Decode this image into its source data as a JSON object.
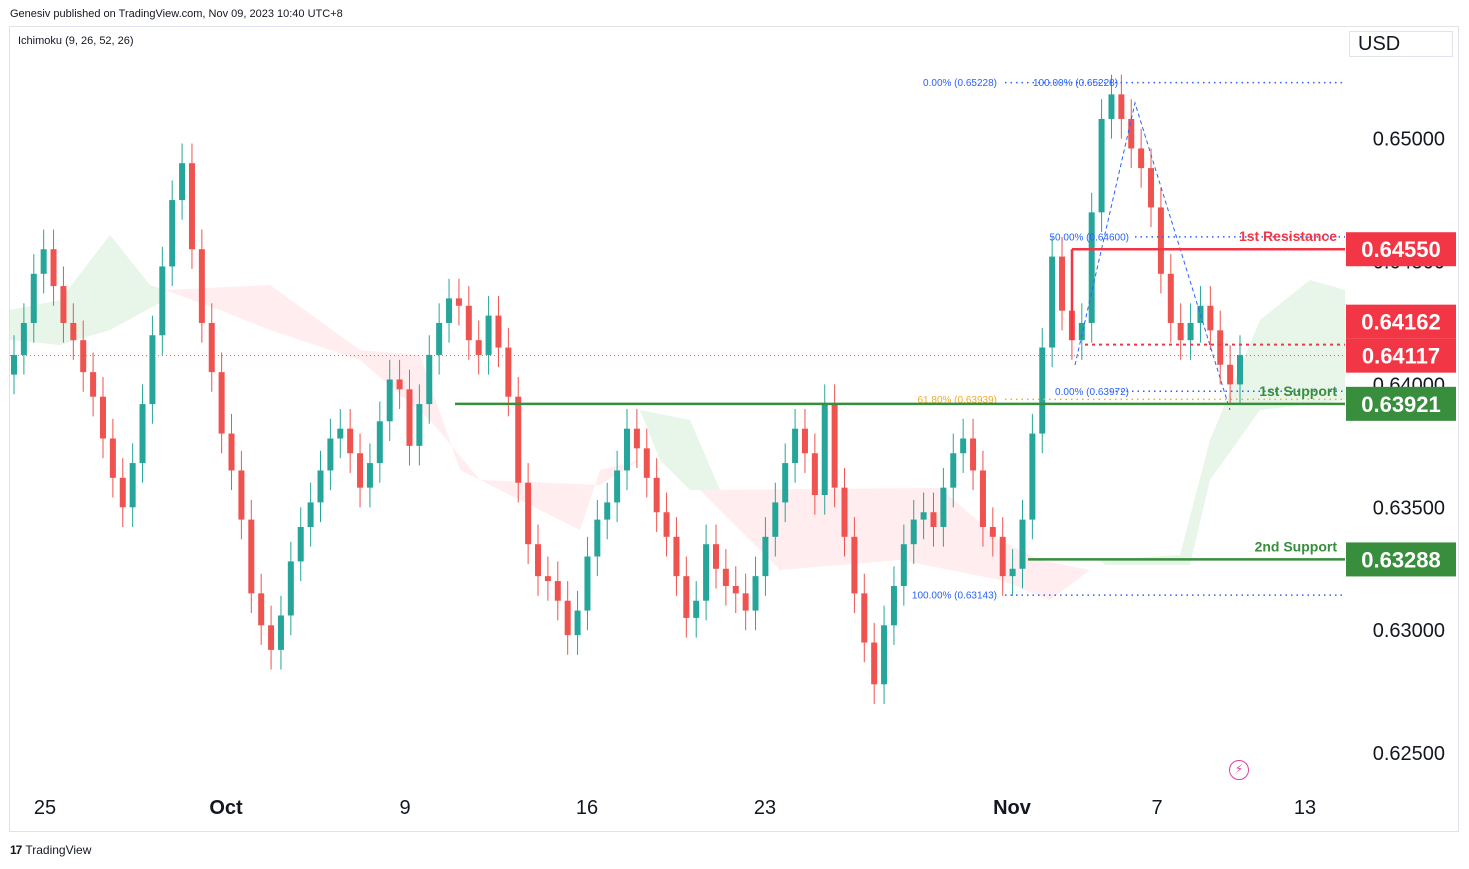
{
  "header": {
    "publisher": "Genesiv published on TradingView.com, Nov 09, 2023 10:40 UTC+8",
    "indicator": "Ichimoku (9, 26, 52, 26)",
    "currency": "USD"
  },
  "footer": {
    "brand": "TradingView",
    "logo_icon": "tradingview-logo-icon"
  },
  "colors": {
    "up": "#26a69a",
    "down": "#ef5350",
    "resistance": "#f23645",
    "support": "#388e3c",
    "fib": "#2962ff",
    "fib_golden": "#f9a825",
    "cloud_bull": "#e8f5e9",
    "cloud_bear": "#ffebee"
  },
  "chart_data": {
    "type": "candlestick",
    "ylim": [
      0.6235,
      0.6545
    ],
    "y_ticks": [
      "0.65000",
      "0.64500",
      "0.64000",
      "0.63500",
      "0.63000",
      "0.62500"
    ],
    "x_ticks": [
      "25",
      "Oct",
      "9",
      "16",
      "23",
      "Nov",
      "7",
      "13"
    ],
    "price_labels": [
      {
        "value": "0.64550",
        "color": "#f23645"
      },
      {
        "value": "0.64162",
        "color": "#f23645"
      },
      {
        "value": "0.64117",
        "color": "#f23645"
      },
      {
        "value": "0.63921",
        "color": "#388e3c"
      },
      {
        "value": "0.63288",
        "color": "#388e3c"
      }
    ],
    "levels": [
      {
        "name": "1st Resistance",
        "value": 0.6455,
        "color": "#f23645"
      },
      {
        "name": "1st Support",
        "value": 0.63921,
        "color": "#388e3c"
      },
      {
        "name": "2nd Support",
        "value": 0.63288,
        "color": "#388e3c"
      }
    ],
    "fib_labels": [
      {
        "text": "0.00% (0.65228)",
        "value": 0.65228
      },
      {
        "text": "100.00% (0.65228)",
        "value": 0.65228
      },
      {
        "text": "50.00% (0.64600)",
        "value": 0.646
      },
      {
        "text": "61.80% (0.63939)",
        "value": 0.63939
      },
      {
        "text": "0.00% (0.63972)",
        "value": 0.63972
      },
      {
        "text": "100.00% (0.63143)",
        "value": 0.63143
      }
    ],
    "close_series": [
      0.6412,
      0.6425,
      0.6445,
      0.6455,
      0.644,
      0.6425,
      0.6418,
      0.6405,
      0.6395,
      0.6378,
      0.6362,
      0.635,
      0.6368,
      0.6392,
      0.642,
      0.6448,
      0.6475,
      0.649,
      0.6455,
      0.6425,
      0.6405,
      0.638,
      0.6365,
      0.6345,
      0.6315,
      0.6302,
      0.6292,
      0.6306,
      0.6328,
      0.6342,
      0.6352,
      0.6365,
      0.6378,
      0.6382,
      0.6372,
      0.6358,
      0.6368,
      0.6385,
      0.6402,
      0.6398,
      0.6375,
      0.6392,
      0.6412,
      0.6425,
      0.6435,
      0.6432,
      0.6418,
      0.6412,
      0.6428,
      0.6415,
      0.6395,
      0.636,
      0.6335,
      0.6322,
      0.632,
      0.6312,
      0.6298,
      0.6308,
      0.633,
      0.6345,
      0.6352,
      0.6365,
      0.6382,
      0.6374,
      0.6362,
      0.6348,
      0.6338,
      0.6322,
      0.6305,
      0.6312,
      0.6335,
      0.6325,
      0.6318,
      0.6315,
      0.6308,
      0.6322,
      0.6338,
      0.6352,
      0.6368,
      0.6382,
      0.6372,
      0.6355,
      0.6392,
      0.6358,
      0.6338,
      0.6315,
      0.6295,
      0.6278,
      0.6302,
      0.6318,
      0.6335,
      0.6345,
      0.6348,
      0.6342,
      0.6358,
      0.6372,
      0.6378,
      0.6365,
      0.6342,
      0.6338,
      0.6322,
      0.6325,
      0.6345,
      0.638,
      0.6415,
      0.6452,
      0.643,
      0.6418,
      0.6425,
      0.647,
      0.6508,
      0.6518,
      0.6508,
      0.6496,
      0.6488,
      0.6472,
      0.6445,
      0.6425,
      0.6418,
      0.6425,
      0.6432,
      0.6422,
      0.6408,
      0.64,
      0.6412
    ]
  }
}
